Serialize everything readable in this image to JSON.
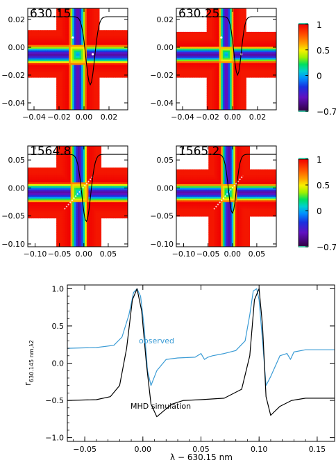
{
  "chart_data": [
    {
      "type": "heatmap",
      "panel_label": "630.15",
      "xticks": [
        "−0.04",
        "−0.02",
        "0.00",
        "0.02"
      ],
      "yticks": [
        "0.02",
        "0.00",
        "−0.02",
        "−0.04"
      ],
      "xlim": [
        -0.045,
        0.035
      ],
      "ylim": [
        -0.045,
        0.028
      ],
      "xtick_values": [
        -0.04,
        -0.02,
        0.0,
        0.02
      ],
      "ytick_values": [
        0.02,
        0.0,
        -0.02,
        -0.04
      ],
      "band_center": [
        -0.005,
        -0.005
      ],
      "band_halfwidth": 0.007,
      "band_outer": 0.017,
      "profile": {
        "depth_at": 0.005,
        "min_y": -0.027,
        "continuum_y": 0.022
      }
    },
    {
      "type": "heatmap",
      "panel_label": "630.25",
      "xticks": [
        "−0.04",
        "−0.02",
        "0.00",
        "0.02"
      ],
      "yticks": [
        "0.02",
        "0.00",
        "−0.02",
        "−0.04"
      ],
      "xlim": [
        -0.045,
        0.035
      ],
      "ylim": [
        -0.045,
        0.028
      ],
      "xtick_values": [
        -0.04,
        -0.02,
        0.0,
        0.02
      ],
      "ytick_values": [
        0.02,
        0.0,
        -0.02,
        -0.04
      ],
      "band_center": [
        -0.005,
        -0.005
      ],
      "band_halfwidth": 0.006,
      "band_outer": 0.016,
      "profile": {
        "depth_at": 0.004,
        "min_y": -0.02,
        "continuum_y": 0.022
      }
    },
    {
      "type": "heatmap",
      "panel_label": "1564.8",
      "xticks": [
        "−0.10",
        "−0.05",
        "0.00",
        "0.05"
      ],
      "yticks": [
        "0.05",
        "0.00",
        "−0.05",
        "−0.10"
      ],
      "xlim": [
        -0.115,
        0.09
      ],
      "ylim": [
        -0.105,
        0.075
      ],
      "xtick_values": [
        -0.1,
        -0.05,
        0.0,
        0.05
      ],
      "ytick_values": [
        0.05,
        0.0,
        -0.05,
        -0.1
      ],
      "band_center": [
        -0.01,
        -0.008
      ],
      "band_halfwidth": 0.018,
      "band_outer": 0.045,
      "profile": {
        "depth_at": 0.005,
        "min_y": -0.06,
        "continuum_y": 0.06
      }
    },
    {
      "type": "heatmap",
      "panel_label": "1565.2",
      "xticks": [
        "−0.10",
        "−0.05",
        "0.00",
        "0.05"
      ],
      "yticks": [
        "0.05",
        "0.00",
        "−0.05",
        "−0.10"
      ],
      "xlim": [
        -0.115,
        0.09
      ],
      "ylim": [
        -0.105,
        0.075
      ],
      "xtick_values": [
        -0.1,
        -0.05,
        0.0,
        0.05
      ],
      "ytick_values": [
        0.05,
        0.0,
        -0.05,
        -0.1
      ],
      "band_center": [
        -0.008,
        -0.008
      ],
      "band_halfwidth": 0.016,
      "band_outer": 0.042,
      "profile": {
        "depth_at": 0.0,
        "min_y": -0.045,
        "continuum_y": 0.06
      }
    },
    {
      "type": "colorbar",
      "range": [
        -0.7,
        1.0
      ],
      "ticks": [
        "1",
        "0.5",
        "0",
        "−0.7"
      ],
      "tick_values": [
        1.0,
        0.5,
        0.0,
        -0.7
      ]
    },
    {
      "type": "line",
      "xlabel": "λ − 630.15 nm",
      "ylabel": "r",
      "ylabel_sub": "630.145 nm,λ2",
      "xlim": [
        -0.065,
        0.165
      ],
      "ylim": [
        -1.05,
        1.05
      ],
      "xticks": [
        "−0.05",
        "0.00",
        "0.05",
        "0.10",
        "0.15"
      ],
      "xtick_values": [
        -0.05,
        0.0,
        0.05,
        0.1,
        0.15
      ],
      "yticks": [
        "1.0",
        "0.5",
        "0.0",
        "−0.5",
        "−1.0"
      ],
      "ytick_values": [
        1.0,
        0.5,
        0.0,
        -0.5,
        -1.0
      ],
      "grid": false,
      "series": [
        {
          "name": "observed",
          "color": "#3a9bd5",
          "x": [
            -0.065,
            -0.04,
            -0.025,
            -0.018,
            -0.012,
            -0.008,
            -0.005,
            -0.002,
            0.001,
            0.004,
            0.007,
            0.012,
            0.02,
            0.03,
            0.045,
            0.05,
            0.053,
            0.056,
            0.06,
            0.07,
            0.08,
            0.088,
            0.092,
            0.095,
            0.098,
            0.1,
            0.103,
            0.106,
            0.11,
            0.118,
            0.124,
            0.127,
            0.13,
            0.14,
            0.165
          ],
          "y": [
            0.2,
            0.21,
            0.24,
            0.35,
            0.65,
            0.95,
            1.0,
            0.9,
            0.5,
            -0.1,
            -0.3,
            -0.1,
            0.05,
            0.07,
            0.08,
            0.13,
            0.05,
            0.08,
            0.1,
            0.13,
            0.17,
            0.3,
            0.65,
            0.97,
            1.0,
            0.85,
            0.3,
            -0.3,
            -0.18,
            0.1,
            0.13,
            0.05,
            0.15,
            0.18,
            0.18
          ]
        },
        {
          "name": "MHD simulation",
          "color": "#000000",
          "x": [
            -0.065,
            -0.04,
            -0.028,
            -0.02,
            -0.014,
            -0.009,
            -0.005,
            -0.001,
            0.003,
            0.007,
            0.012,
            0.018,
            0.025,
            0.035,
            0.05,
            0.07,
            0.085,
            0.092,
            0.096,
            0.1,
            0.103,
            0.106,
            0.11,
            0.118,
            0.128,
            0.14,
            0.165
          ],
          "y": [
            -0.5,
            -0.49,
            -0.45,
            -0.3,
            0.2,
            0.85,
            1.0,
            0.7,
            0.0,
            -0.55,
            -0.72,
            -0.64,
            -0.55,
            -0.5,
            -0.49,
            -0.47,
            -0.35,
            0.1,
            0.85,
            1.0,
            0.5,
            -0.45,
            -0.7,
            -0.58,
            -0.5,
            -0.47,
            -0.47
          ]
        }
      ]
    }
  ]
}
